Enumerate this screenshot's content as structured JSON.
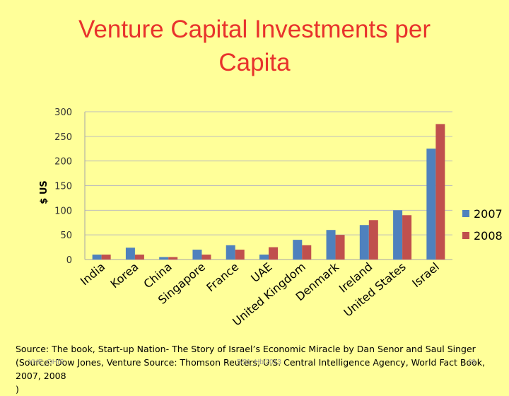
{
  "slide": {
    "title_line1": "Venture Capital Investments per",
    "title_line2": "Capita",
    "source_line1": "Source: The book, Start-up Nation- The Story of Israel’s Economic Miracle by Dan Senor and Saul Singer",
    "source_line2": "(Source: Dow Jones, Venture Source: Thomson Reuters; U.S. Central Intelligence Agency, World Fact Book, 2007, 2008",
    "source_line3": ")",
    "footer_left": "YHE_OHIS",
    "footer_center": "5/31_Hb/2013",
    "footer_right": "29"
  },
  "chart_data": {
    "type": "bar",
    "ylabel": "$ US",
    "ylim": [
      0,
      300
    ],
    "yticks": [
      0,
      50,
      100,
      150,
      200,
      250,
      300
    ],
    "grid": true,
    "legend_position": "right",
    "categories": [
      "India",
      "Korea",
      "China",
      "Singapore",
      "France",
      "UAE",
      "United Kingdom",
      "Denmark",
      "Ireland",
      "United States",
      "Israel"
    ],
    "series": [
      {
        "name": "2007",
        "color": "#4f81bd",
        "values": [
          10,
          24,
          5,
          20,
          29,
          10,
          40,
          60,
          70,
          100,
          225
        ]
      },
      {
        "name": "2008",
        "color": "#c0504d",
        "values": [
          10,
          10,
          5,
          10,
          20,
          25,
          29,
          50,
          80,
          90,
          275
        ]
      }
    ]
  }
}
